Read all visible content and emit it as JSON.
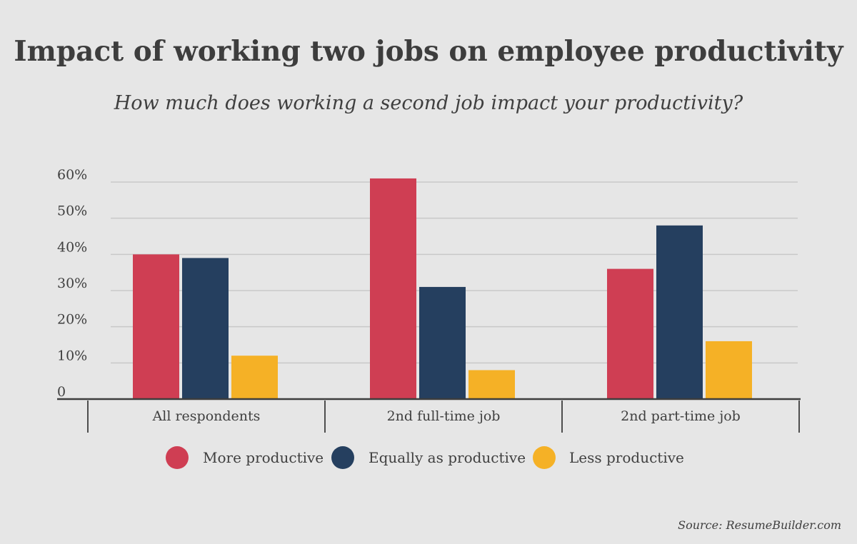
{
  "chart_data": {
    "type": "bar",
    "title": "Impact of working two jobs on employee productivity",
    "subtitle": "How much does working a second job impact your productivity?",
    "categories": [
      "All respondents",
      "2nd full-time job",
      "2nd part-time job"
    ],
    "series": [
      {
        "name": "More productive",
        "color": "#cf3e53",
        "values": [
          40,
          61,
          36
        ]
      },
      {
        "name": "Equally as productive",
        "color": "#253f5f",
        "values": [
          39,
          31,
          48
        ]
      },
      {
        "name": "Less productive",
        "color": "#f5b126",
        "values": [
          12,
          8,
          16
        ]
      }
    ],
    "ylim": [
      0,
      60
    ],
    "yticks": [
      0,
      10,
      20,
      30,
      40,
      50,
      60
    ],
    "ytick_labels": [
      "0",
      "10%",
      "20%",
      "30%",
      "40%",
      "50%",
      "60%"
    ],
    "grid": true,
    "legend_position": "bottom"
  },
  "source": "Source: ResumeBuilder.com"
}
